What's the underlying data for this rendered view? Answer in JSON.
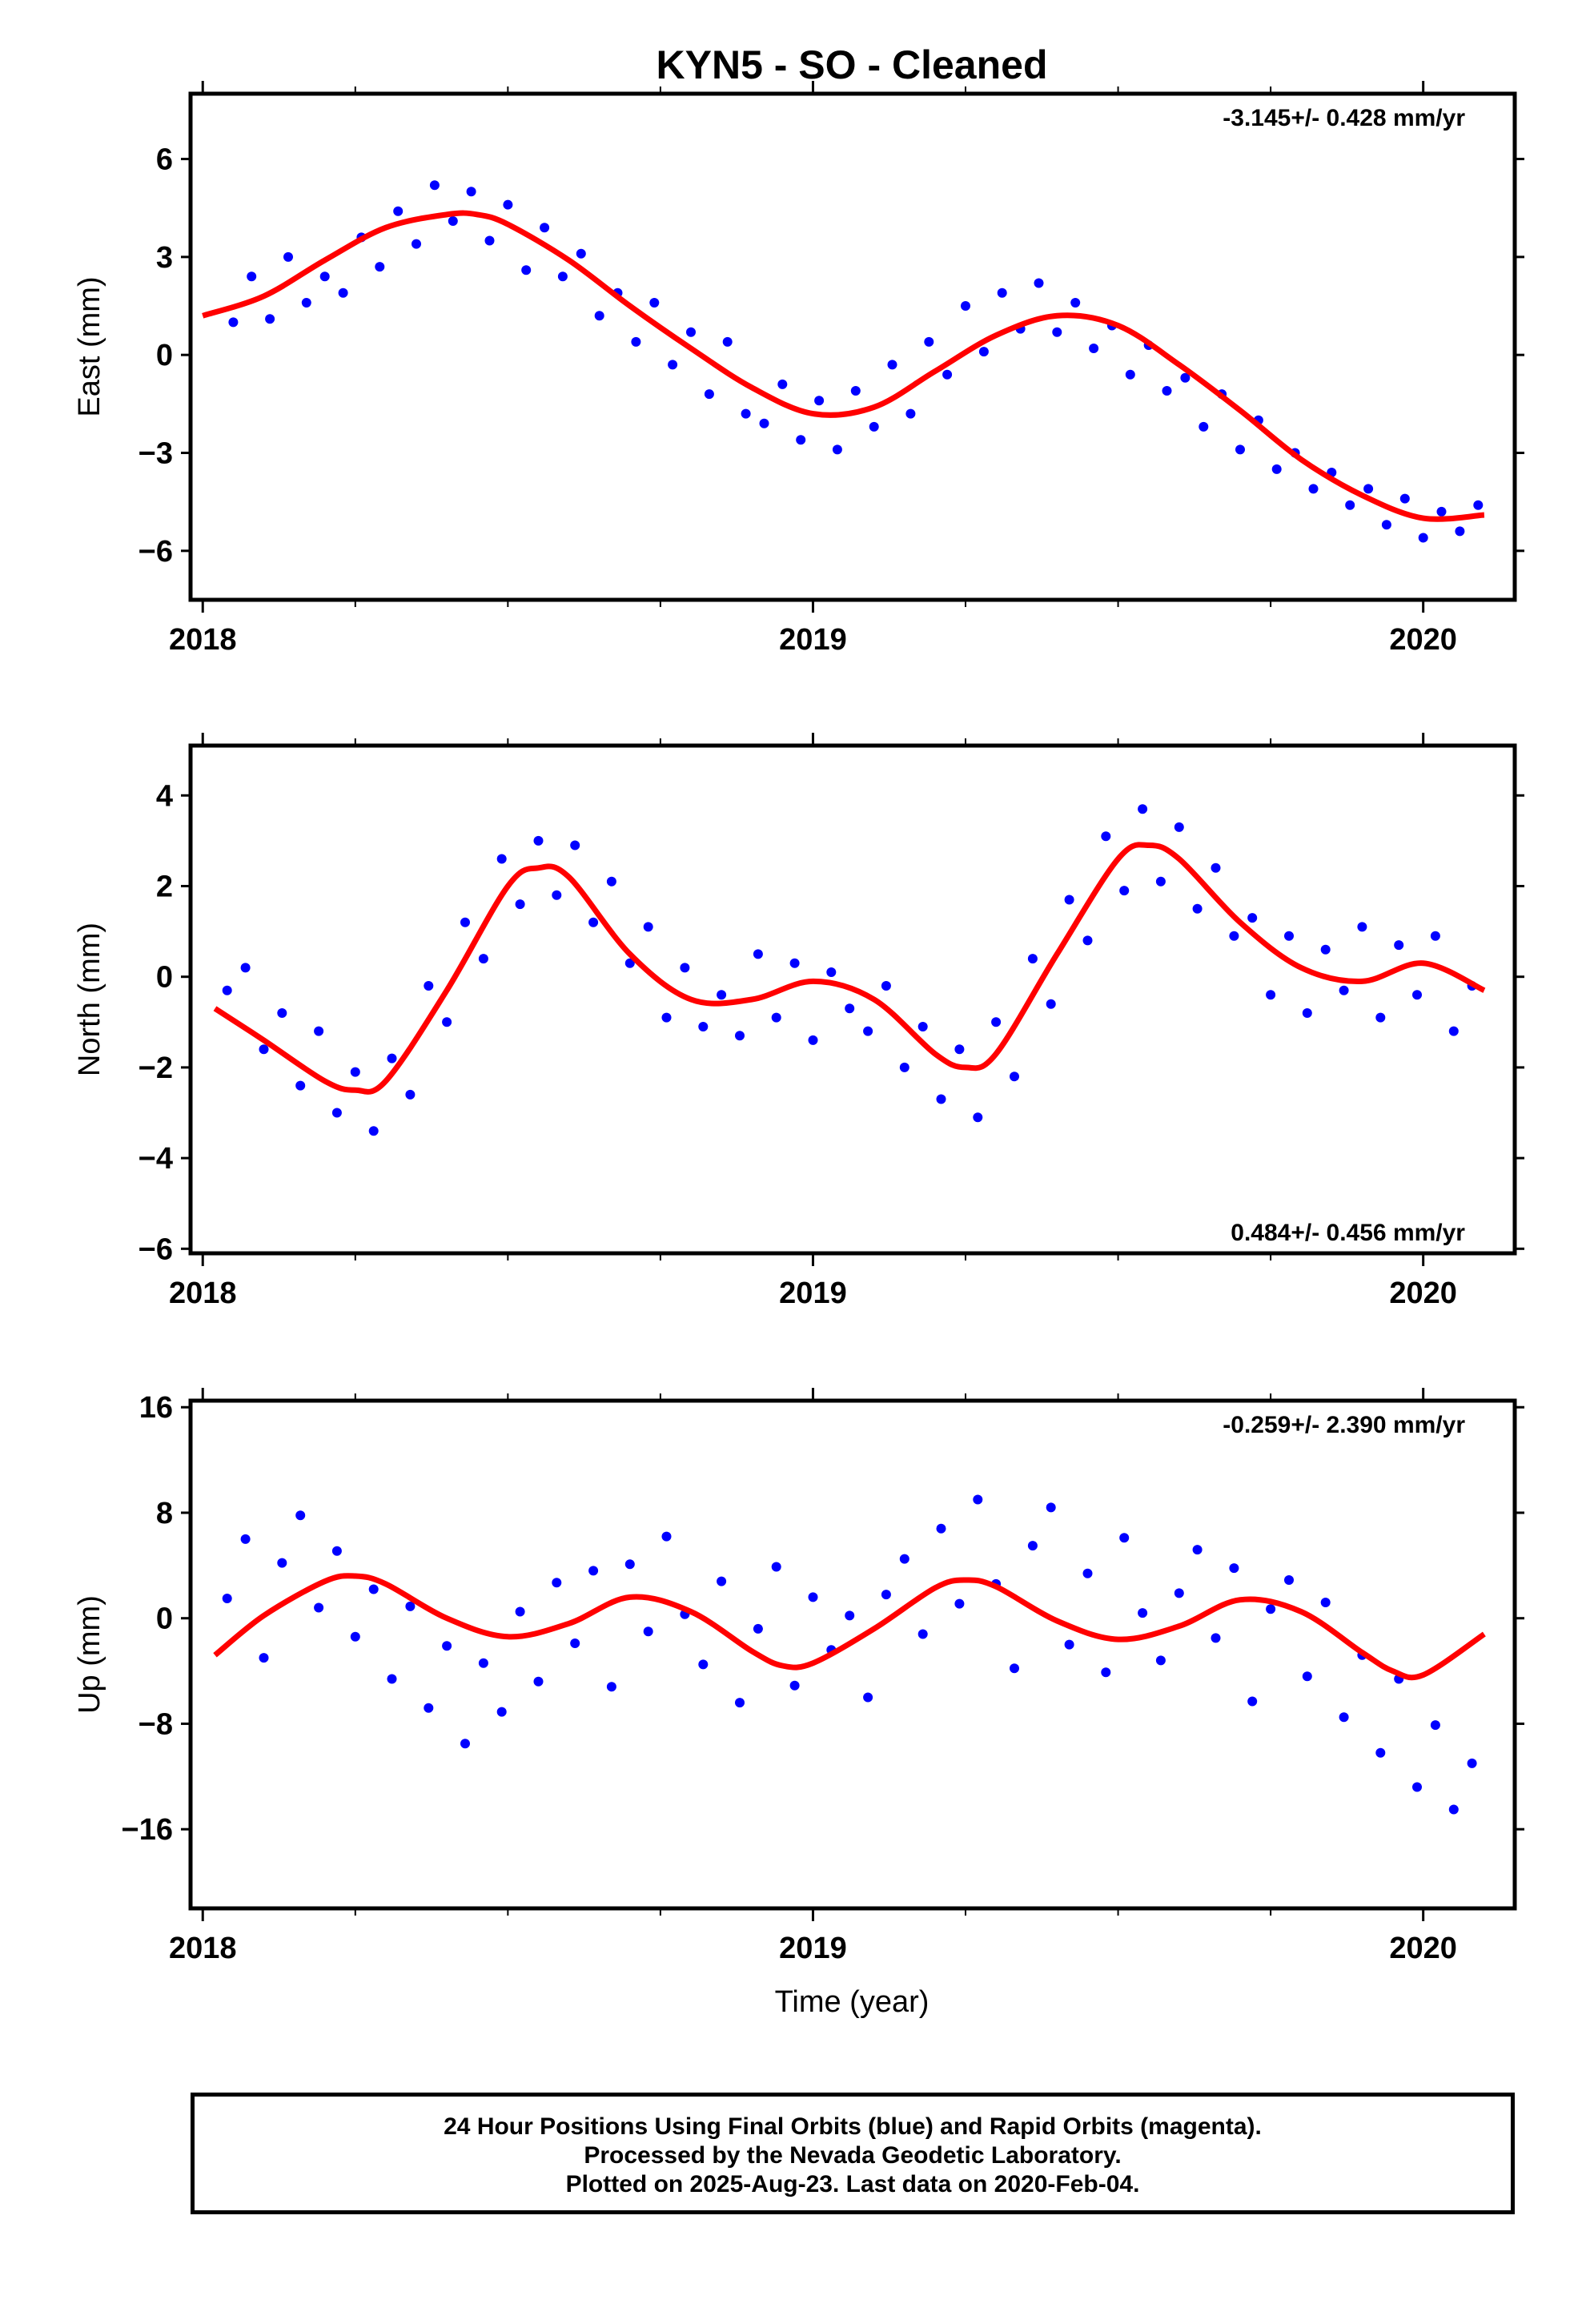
{
  "figure": {
    "title": "KYN5  - SO - Cleaned",
    "xlabel": "Time (year)"
  },
  "footer": {
    "line1": "24 Hour Positions Using Final Orbits (blue) and Rapid Orbits (magenta).",
    "line2": "Processed by the Nevada Geodetic Laboratory.",
    "line3": "Plotted on 2025-Aug-23. Last data on 2020-Feb-04."
  },
  "colors": {
    "final_orbits": "#0000ff",
    "rapid_orbits": "#ff00ff",
    "model": "#ff0000"
  },
  "chart_data": [
    {
      "type": "scatter",
      "name": "east",
      "ylabel": "East (mm)",
      "rate_label": "-3.145+/- 0.428 mm/yr",
      "xlim": [
        2017.98,
        2020.15
      ],
      "ylim": [
        -7.5,
        8.0
      ],
      "yticks": [
        -6,
        -3,
        0,
        3,
        6
      ],
      "yticklabels": [
        "−6",
        "−3",
        "0",
        "3",
        "6"
      ],
      "xticks": [
        2018,
        2019,
        2020
      ],
      "xticklabels": [
        "2018",
        "2019",
        "2020"
      ],
      "model_curve": {
        "x": [
          2018.0,
          2018.1,
          2018.2,
          2018.3,
          2018.4,
          2018.45,
          2018.5,
          2018.6,
          2018.7,
          2018.8,
          2018.9,
          2019.0,
          2019.1,
          2019.2,
          2019.3,
          2019.4,
          2019.5,
          2019.6,
          2019.7,
          2019.8,
          2019.9,
          2020.0,
          2020.1
        ],
        "y": [
          1.2,
          1.8,
          2.9,
          3.9,
          4.3,
          4.3,
          4.0,
          2.9,
          1.5,
          0.2,
          -1.0,
          -1.8,
          -1.6,
          -0.5,
          0.6,
          1.2,
          0.9,
          -0.3,
          -1.7,
          -3.2,
          -4.3,
          -5.0,
          -4.9
        ]
      },
      "points": {
        "x": [
          2018.05,
          2018.08,
          2018.11,
          2018.14,
          2018.17,
          2018.2,
          2018.23,
          2018.26,
          2018.29,
          2018.32,
          2018.35,
          2018.38,
          2018.41,
          2018.44,
          2018.47,
          2018.5,
          2018.53,
          2018.56,
          2018.59,
          2018.62,
          2018.65,
          2018.68,
          2018.71,
          2018.74,
          2018.77,
          2018.8,
          2018.83,
          2018.86,
          2018.89,
          2018.92,
          2018.95,
          2018.98,
          2019.01,
          2019.04,
          2019.07,
          2019.1,
          2019.13,
          2019.16,
          2019.19,
          2019.22,
          2019.25,
          2019.28,
          2019.31,
          2019.34,
          2019.37,
          2019.4,
          2019.43,
          2019.46,
          2019.49,
          2019.52,
          2019.55,
          2019.58,
          2019.61,
          2019.64,
          2019.67,
          2019.7,
          2019.73,
          2019.76,
          2019.79,
          2019.82,
          2019.85,
          2019.88,
          2019.91,
          2019.94,
          2019.97,
          2020.0,
          2020.03,
          2020.06,
          2020.09
        ],
        "y": [
          1.0,
          2.4,
          1.1,
          3.0,
          1.6,
          2.4,
          1.9,
          3.6,
          2.7,
          4.4,
          3.4,
          5.2,
          4.1,
          5.0,
          3.5,
          4.6,
          2.6,
          3.9,
          2.4,
          3.1,
          1.2,
          1.9,
          0.4,
          1.6,
          -0.3,
          0.7,
          -1.2,
          0.4,
          -1.8,
          -2.1,
          -0.9,
          -2.6,
          -1.4,
          -2.9,
          -1.1,
          -2.2,
          -0.3,
          -1.8,
          0.4,
          -0.6,
          1.5,
          0.1,
          1.9,
          0.8,
          2.2,
          0.7,
          1.6,
          0.2,
          0.9,
          -0.6,
          0.3,
          -1.1,
          -0.7,
          -2.2,
          -1.2,
          -2.9,
          -2.0,
          -3.5,
          -3.0,
          -4.1,
          -3.6,
          -4.6,
          -4.1,
          -5.2,
          -4.4,
          -5.6,
          -4.8,
          -5.4,
          -4.6
        ]
      }
    },
    {
      "type": "scatter",
      "name": "north",
      "ylabel": "North (mm)",
      "rate_label": "0.484+/- 0.456 mm/yr",
      "xlim": [
        2017.98,
        2020.15
      ],
      "ylim": [
        -6.1,
        5.1
      ],
      "yticks": [
        -6,
        -4,
        -2,
        0,
        2,
        4
      ],
      "yticklabels": [
        "−6",
        "−4",
        "−2",
        "0",
        "2",
        "4"
      ],
      "xticks": [
        2018,
        2019,
        2020
      ],
      "xticklabels": [
        "2018",
        "2019",
        "2020"
      ],
      "model_curve": {
        "x": [
          2018.02,
          2018.1,
          2018.2,
          2018.25,
          2018.3,
          2018.4,
          2018.5,
          2018.55,
          2018.6,
          2018.7,
          2018.8,
          2018.9,
          2019.0,
          2019.1,
          2019.2,
          2019.25,
          2019.3,
          2019.4,
          2019.5,
          2019.55,
          2019.6,
          2019.7,
          2019.8,
          2019.9,
          2020.0,
          2020.1
        ],
        "y": [
          -0.7,
          -1.4,
          -2.3,
          -2.5,
          -2.3,
          -0.3,
          2.0,
          2.4,
          2.2,
          0.5,
          -0.5,
          -0.5,
          -0.1,
          -0.5,
          -1.7,
          -2.0,
          -1.7,
          0.5,
          2.6,
          2.9,
          2.6,
          1.2,
          0.2,
          -0.1,
          0.3,
          -0.3
        ]
      },
      "points": {
        "x": [
          2018.04,
          2018.07,
          2018.1,
          2018.13,
          2018.16,
          2018.19,
          2018.22,
          2018.25,
          2018.28,
          2018.31,
          2018.34,
          2018.37,
          2018.4,
          2018.43,
          2018.46,
          2018.49,
          2018.52,
          2018.55,
          2018.58,
          2018.61,
          2018.64,
          2018.67,
          2018.7,
          2018.73,
          2018.76,
          2018.79,
          2018.82,
          2018.85,
          2018.88,
          2018.91,
          2018.94,
          2018.97,
          2019.0,
          2019.03,
          2019.06,
          2019.09,
          2019.12,
          2019.15,
          2019.18,
          2019.21,
          2019.24,
          2019.27,
          2019.3,
          2019.33,
          2019.36,
          2019.39,
          2019.42,
          2019.45,
          2019.48,
          2019.51,
          2019.54,
          2019.57,
          2019.6,
          2019.63,
          2019.66,
          2019.69,
          2019.72,
          2019.75,
          2019.78,
          2019.81,
          2019.84,
          2019.87,
          2019.9,
          2019.93,
          2019.96,
          2019.99,
          2020.02,
          2020.05,
          2020.08
        ],
        "y": [
          -0.3,
          0.2,
          -1.6,
          -0.8,
          -2.4,
          -1.2,
          -3.0,
          -2.1,
          -3.4,
          -1.8,
          -2.6,
          -0.2,
          -1.0,
          1.2,
          0.4,
          2.6,
          1.6,
          3.0,
          1.8,
          2.9,
          1.2,
          2.1,
          0.3,
          1.1,
          -0.9,
          0.2,
          -1.1,
          -0.4,
          -1.3,
          0.5,
          -0.9,
          0.3,
          -1.4,
          0.1,
          -0.7,
          -1.2,
          -0.2,
          -2.0,
          -1.1,
          -2.7,
          -1.6,
          -3.1,
          -1.0,
          -2.2,
          0.4,
          -0.6,
          1.7,
          0.8,
          3.1,
          1.9,
          3.7,
          2.1,
          3.3,
          1.5,
          2.4,
          0.9,
          1.3,
          -0.4,
          0.9,
          -0.8,
          0.6,
          -0.3,
          1.1,
          -0.9,
          0.7,
          -0.4,
          0.9,
          -1.2,
          -0.2
        ]
      }
    },
    {
      "type": "scatter",
      "name": "up",
      "ylabel": "Up (mm)",
      "rate_label": "-0.259+/- 2.390 mm/yr",
      "xlim": [
        2017.98,
        2020.15
      ],
      "ylim": [
        -22.0,
        16.5
      ],
      "yticks": [
        -16,
        -8,
        0,
        8,
        16
      ],
      "yticklabels": [
        "−16",
        "−8",
        "0",
        "8",
        "16"
      ],
      "xticks": [
        2018,
        2019,
        2020
      ],
      "xticklabels": [
        "2018",
        "2019",
        "2020"
      ],
      "model_curve": {
        "x": [
          2018.02,
          2018.1,
          2018.2,
          2018.25,
          2018.3,
          2018.4,
          2018.5,
          2018.6,
          2018.7,
          2018.8,
          2018.9,
          2018.95,
          2019.0,
          2019.1,
          2019.2,
          2019.25,
          2019.3,
          2019.4,
          2019.5,
          2019.6,
          2019.7,
          2019.8,
          2019.9,
          2019.95,
          2020.0,
          2020.1
        ],
        "y": [
          -2.8,
          0.2,
          2.8,
          3.2,
          2.6,
          0.0,
          -1.4,
          -0.4,
          1.6,
          0.5,
          -2.5,
          -3.6,
          -3.4,
          -0.8,
          2.3,
          2.9,
          2.4,
          -0.2,
          -1.6,
          -0.6,
          1.4,
          0.5,
          -2.6,
          -4.0,
          -4.3,
          -1.2
        ]
      },
      "points": {
        "x": [
          2018.04,
          2018.07,
          2018.1,
          2018.13,
          2018.16,
          2018.19,
          2018.22,
          2018.25,
          2018.28,
          2018.31,
          2018.34,
          2018.37,
          2018.4,
          2018.43,
          2018.46,
          2018.49,
          2018.52,
          2018.55,
          2018.58,
          2018.61,
          2018.64,
          2018.67,
          2018.7,
          2018.73,
          2018.76,
          2018.79,
          2018.82,
          2018.85,
          2018.88,
          2018.91,
          2018.94,
          2018.97,
          2019.0,
          2019.03,
          2019.06,
          2019.09,
          2019.12,
          2019.15,
          2019.18,
          2019.21,
          2019.24,
          2019.27,
          2019.3,
          2019.33,
          2019.36,
          2019.39,
          2019.42,
          2019.45,
          2019.48,
          2019.51,
          2019.54,
          2019.57,
          2019.6,
          2019.63,
          2019.66,
          2019.69,
          2019.72,
          2019.75,
          2019.78,
          2019.81,
          2019.84,
          2019.87,
          2019.9,
          2019.93,
          2019.96,
          2019.99,
          2020.02,
          2020.05,
          2020.08
        ],
        "y": [
          1.5,
          6.0,
          -3.0,
          4.2,
          7.8,
          0.8,
          5.1,
          -1.4,
          2.2,
          -4.6,
          0.9,
          -6.8,
          -2.1,
          -9.5,
          -3.4,
          -7.1,
          0.5,
          -4.8,
          2.7,
          -1.9,
          3.6,
          -5.2,
          4.1,
          -1.0,
          6.2,
          0.3,
          -3.5,
          2.8,
          -6.4,
          -0.8,
          3.9,
          -5.1,
          1.6,
          -2.4,
          0.2,
          -6.0,
          1.8,
          4.5,
          -1.2,
          6.8,
          1.1,
          9.0,
          2.6,
          -3.8,
          5.5,
          8.4,
          -2.0,
          3.4,
          -4.1,
          6.1,
          0.4,
          -3.2,
          1.9,
          5.2,
          -1.5,
          3.8,
          -6.3,
          0.7,
          2.9,
          -4.4,
          1.2,
          -7.5,
          -2.8,
          -10.2,
          -4.6,
          -12.8,
          -8.1,
          -14.5,
          -11.0
        ]
      }
    }
  ]
}
